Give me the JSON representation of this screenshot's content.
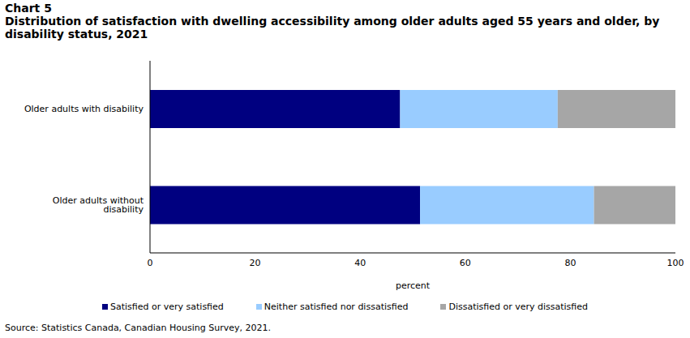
{
  "chart_data": {
    "type": "bar",
    "kicker": "Chart 5",
    "title": "Distribution of satisfaction with dwelling accessibility among older adults aged 55 years and older, by disability status, 2021",
    "categories": [
      "Older adults with disability",
      "Older adults without disability"
    ],
    "series": [
      {
        "name": "Satisfied or very satisfied",
        "color": "#000080",
        "values": [
          47.6,
          51.4
        ]
      },
      {
        "name": "Neither satisfied nor dissatisfied",
        "color": "#99ccff",
        "values": [
          30.0,
          33.1
        ]
      },
      {
        "name": "Dissatisfied or very dissatisfied",
        "color": "#a6a6a6",
        "values": [
          22.4,
          15.5
        ]
      }
    ],
    "xlabel": "percent",
    "xlim": [
      0,
      100
    ],
    "xticks": [
      0,
      20,
      40,
      60,
      80,
      100
    ],
    "orientation": "horizontal",
    "stacked": true,
    "grid": false,
    "legend": "bottom",
    "source": "Source: Statistics Canada, Canadian Housing Survey, 2021."
  }
}
